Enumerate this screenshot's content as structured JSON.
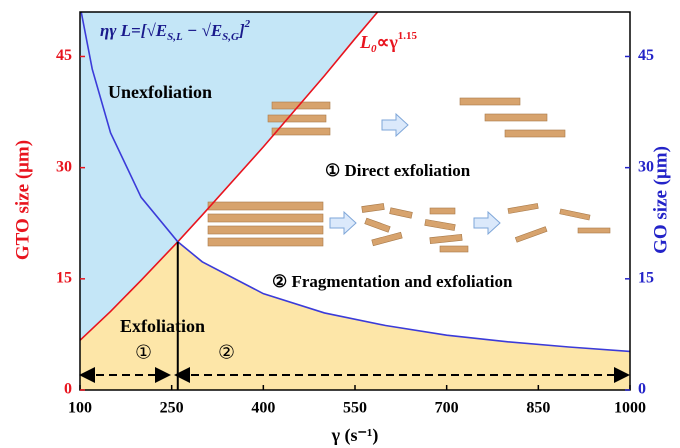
{
  "chart_data": {
    "type": "line",
    "x_label": "γ (s⁻¹)",
    "y_label": "GTO size (μm)",
    "y2_label": "GO size (μm)",
    "xlim": [
      100,
      1000
    ],
    "xticks": [
      100,
      250,
      400,
      550,
      700,
      850,
      1000
    ],
    "ylim": [
      0,
      51
    ],
    "yticks": [
      0,
      15,
      30,
      45
    ],
    "y2lim": [
      0,
      51
    ],
    "y2ticks": [
      0,
      15,
      30,
      45
    ],
    "series": [
      {
        "color": "#e8141e",
        "x": [
          100,
          150,
          200,
          260,
          300,
          400,
          500,
          550,
          587
        ],
        "values": [
          6.7,
          10.6,
          14.8,
          20,
          23.6,
          32.8,
          42.4,
          47.4,
          51
        ]
      },
      {
        "color": "#3b3bd9",
        "axis": "y2",
        "x": [
          102,
          120,
          150,
          200,
          260,
          300,
          400,
          500,
          600,
          700,
          800,
          900,
          1000
        ],
        "values": [
          51,
          43.3,
          34.7,
          26,
          20,
          17.3,
          13,
          10.4,
          8.7,
          7.4,
          6.5,
          5.8,
          5.2
        ]
      }
    ],
    "region_colors": {
      "unexfoliation": "#c4e6f7",
      "exfoliation": "#fde6a8"
    },
    "annotations": {
      "formula": {
        "lhs": "ηγ L=[",
        "e1": "E",
        "s1": "S,L",
        "minus": " − ",
        "e2": "E",
        "s2": "S,G",
        "rhs": "]",
        "sup": "2"
      },
      "power_law": {
        "base": "L",
        "sub": "0",
        "mid": "∝γ",
        "sup": "1.15"
      },
      "unexfoliation": "Unexfoliation",
      "exfoliation": "Exfoliation",
      "region1": "①",
      "region2": "②",
      "direct": "① Direct exfoliation",
      "fragmentation": "② Fragmentation and exfoliation"
    }
  }
}
